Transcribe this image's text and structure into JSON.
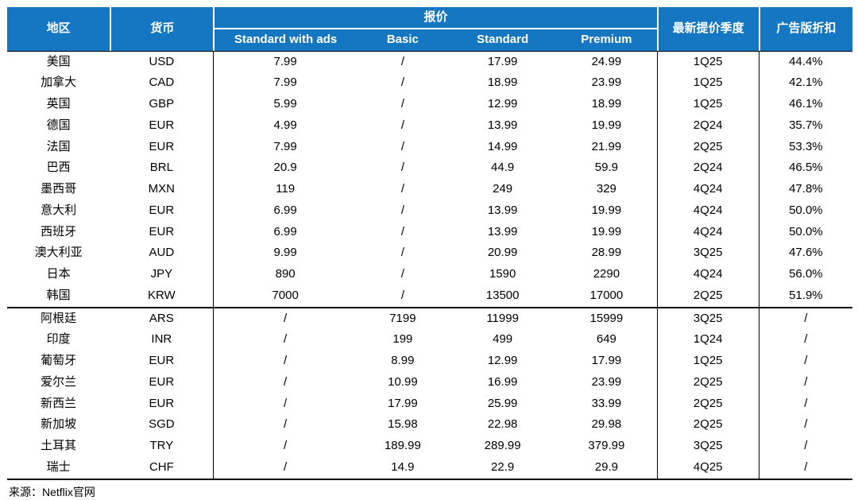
{
  "colors": {
    "header_bg": "#1576C1",
    "header_text": "#FFFFFF",
    "body_text": "#000000",
    "border_color": "#000000"
  },
  "footer": {
    "source_note": "来源：Netflix官网"
  },
  "chart_data": {
    "type": "table",
    "header": {
      "region": "地区",
      "currency": "货币",
      "quote_group": "报价",
      "sub_columns": [
        "Standard with ads",
        "Basic",
        "Standard",
        "Premium"
      ],
      "latest_quarter": "最新提价季度",
      "ad_discount": "广告版折扣"
    },
    "row_keys": [
      "region",
      "currency",
      "swa",
      "basic",
      "standard",
      "premium",
      "quarter",
      "discount"
    ],
    "group1": [
      {
        "region": "美国",
        "currency": "USD",
        "swa": "7.99",
        "basic": "/",
        "standard": "17.99",
        "premium": "24.99",
        "quarter": "1Q25",
        "discount": "44.4%"
      },
      {
        "region": "加拿大",
        "currency": "CAD",
        "swa": "7.99",
        "basic": "/",
        "standard": "18.99",
        "premium": "23.99",
        "quarter": "1Q25",
        "discount": "42.1%"
      },
      {
        "region": "英国",
        "currency": "GBP",
        "swa": "5.99",
        "basic": "/",
        "standard": "12.99",
        "premium": "18.99",
        "quarter": "1Q25",
        "discount": "46.1%"
      },
      {
        "region": "德国",
        "currency": "EUR",
        "swa": "4.99",
        "basic": "/",
        "standard": "13.99",
        "premium": "19.99",
        "quarter": "2Q24",
        "discount": "35.7%"
      },
      {
        "region": "法国",
        "currency": "EUR",
        "swa": "7.99",
        "basic": "/",
        "standard": "14.99",
        "premium": "21.99",
        "quarter": "2Q25",
        "discount": "53.3%"
      },
      {
        "region": "巴西",
        "currency": "BRL",
        "swa": "20.9",
        "basic": "/",
        "standard": "44.9",
        "premium": "59.9",
        "quarter": "2Q24",
        "discount": "46.5%"
      },
      {
        "region": "墨西哥",
        "currency": "MXN",
        "swa": "119",
        "basic": "/",
        "standard": "249",
        "premium": "329",
        "quarter": "4Q24",
        "discount": "47.8%"
      },
      {
        "region": "意大利",
        "currency": "EUR",
        "swa": "6.99",
        "basic": "/",
        "standard": "13.99",
        "premium": "19.99",
        "quarter": "4Q24",
        "discount": "50.0%"
      },
      {
        "region": "西班牙",
        "currency": "EUR",
        "swa": "6.99",
        "basic": "/",
        "standard": "13.99",
        "premium": "19.99",
        "quarter": "4Q24",
        "discount": "50.0%"
      },
      {
        "region": "澳大利亚",
        "currency": "AUD",
        "swa": "9.99",
        "basic": "/",
        "standard": "20.99",
        "premium": "28.99",
        "quarter": "3Q25",
        "discount": "47.6%"
      },
      {
        "region": "日本",
        "currency": "JPY",
        "swa": "890",
        "basic": "/",
        "standard": "1590",
        "premium": "2290",
        "quarter": "4Q24",
        "discount": "56.0%"
      },
      {
        "region": "韩国",
        "currency": "KRW",
        "swa": "7000",
        "basic": "/",
        "standard": "13500",
        "premium": "17000",
        "quarter": "2Q25",
        "discount": "51.9%"
      }
    ],
    "group2": [
      {
        "region": "阿根廷",
        "currency": "ARS",
        "swa": "/",
        "basic": "7199",
        "standard": "11999",
        "premium": "15999",
        "quarter": "3Q25",
        "discount": "/"
      },
      {
        "region": "印度",
        "currency": "INR",
        "swa": "/",
        "basic": "199",
        "standard": "499",
        "premium": "649",
        "quarter": "1Q24",
        "discount": "/"
      },
      {
        "region": "葡萄牙",
        "currency": "EUR",
        "swa": "/",
        "basic": "8.99",
        "standard": "12.99",
        "premium": "17.99",
        "quarter": "1Q25",
        "discount": "/"
      },
      {
        "region": "爱尔兰",
        "currency": "EUR",
        "swa": "/",
        "basic": "10.99",
        "standard": "16.99",
        "premium": "23.99",
        "quarter": "2Q25",
        "discount": "/"
      },
      {
        "region": "新西兰",
        "currency": "EUR",
        "swa": "/",
        "basic": "17.99",
        "standard": "25.99",
        "premium": "33.99",
        "quarter": "2Q25",
        "discount": "/"
      },
      {
        "region": "新加坡",
        "currency": "SGD",
        "swa": "/",
        "basic": "15.98",
        "standard": "22.98",
        "premium": "29.98",
        "quarter": "2Q25",
        "discount": "/"
      },
      {
        "region": "土耳其",
        "currency": "TRY",
        "swa": "/",
        "basic": "189.99",
        "standard": "289.99",
        "premium": "379.99",
        "quarter": "3Q25",
        "discount": "/"
      },
      {
        "region": "瑞士",
        "currency": "CHF",
        "swa": "/",
        "basic": "14.9",
        "standard": "22.9",
        "premium": "29.9",
        "quarter": "4Q25",
        "discount": "/"
      }
    ]
  }
}
